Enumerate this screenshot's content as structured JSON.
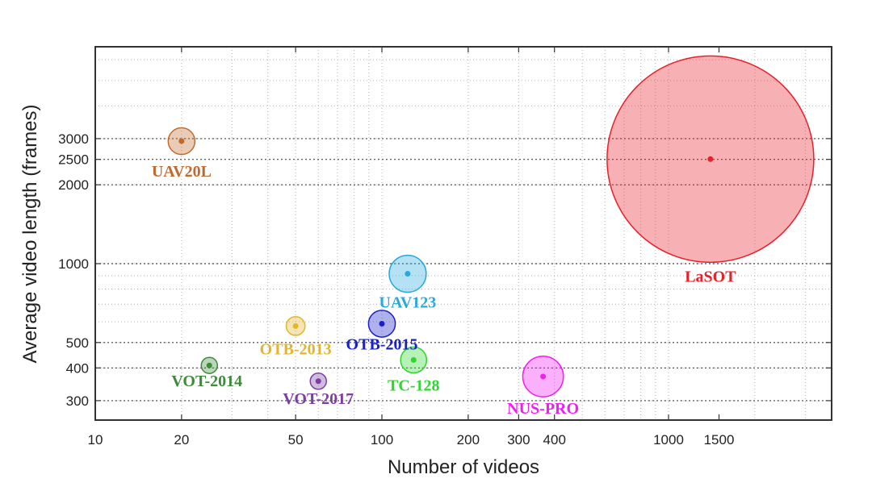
{
  "chart_data": {
    "type": "scatter",
    "xlabel": "Number of videos",
    "ylabel": "Average video length (frames)",
    "x_scale": "log",
    "y_scale": "log",
    "xlim": [
      10,
      3500
    ],
    "ylim": [
      230,
      7000
    ],
    "x_ticks": [
      10,
      20,
      50,
      100,
      200,
      300,
      400,
      1000,
      1500
    ],
    "y_ticks": [
      300,
      400,
      500,
      1000,
      2000,
      2500,
      3000
    ],
    "grid": true,
    "points": [
      {
        "label": "UAV20L",
        "x": 20,
        "y": 2934,
        "color": "#c06a2e"
      },
      {
        "label": "LaSOT",
        "x": 1400,
        "y": 2506,
        "color": "#e8202a"
      },
      {
        "label": "UAV123",
        "x": 123,
        "y": 915,
        "color": "#29a8dd"
      },
      {
        "label": "OTB-2013",
        "x": 50,
        "y": 578,
        "color": "#e2b52c"
      },
      {
        "label": "OTB-2015",
        "x": 100,
        "y": 590,
        "color": "#1a20c8"
      },
      {
        "label": "TC-128",
        "x": 129,
        "y": 429,
        "color": "#2ed62e"
      },
      {
        "label": "VOT-2014",
        "x": 25,
        "y": 409,
        "color": "#3d8a3a"
      },
      {
        "label": "VOT-2017",
        "x": 60,
        "y": 356,
        "color": "#7b3fa3"
      },
      {
        "label": "NUS-PRO",
        "x": 365,
        "y": 371,
        "color": "#f01ef0"
      }
    ]
  }
}
